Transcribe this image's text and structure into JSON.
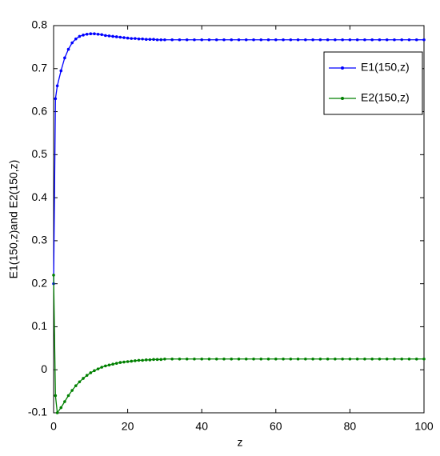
{
  "chart_data": {
    "type": "line",
    "xlabel": "z",
    "ylabel": "E1(150,z)and E2(150,z)",
    "x": [
      0,
      0.5,
      1,
      2,
      3,
      4,
      5,
      6,
      7,
      8,
      9,
      10,
      11,
      12,
      13,
      14,
      15,
      16,
      17,
      18,
      19,
      20,
      21,
      22,
      23,
      24,
      25,
      26,
      27,
      28,
      29,
      30,
      32,
      34,
      36,
      38,
      40,
      42,
      44,
      46,
      48,
      50,
      52,
      54,
      56,
      58,
      60,
      62,
      64,
      66,
      68,
      70,
      72,
      74,
      76,
      78,
      80,
      82,
      84,
      86,
      88,
      90,
      92,
      94,
      96,
      98,
      100
    ],
    "series": [
      {
        "name": "E1(150,z)",
        "color": "#0000ff",
        "values": [
          0.2,
          0.63,
          0.66,
          0.695,
          0.725,
          0.745,
          0.76,
          0.769,
          0.775,
          0.778,
          0.78,
          0.781,
          0.781,
          0.78,
          0.779,
          0.777,
          0.776,
          0.775,
          0.774,
          0.773,
          0.772,
          0.771,
          0.77,
          0.77,
          0.769,
          0.769,
          0.768,
          0.768,
          0.768,
          0.767,
          0.767,
          0.767,
          0.767,
          0.767,
          0.767,
          0.767,
          0.767,
          0.767,
          0.767,
          0.767,
          0.767,
          0.767,
          0.767,
          0.767,
          0.767,
          0.767,
          0.767,
          0.767,
          0.767,
          0.767,
          0.767,
          0.767,
          0.767,
          0.767,
          0.767,
          0.767,
          0.767,
          0.767,
          0.767,
          0.767,
          0.767,
          0.767,
          0.767,
          0.767,
          0.767,
          0.767,
          0.767
        ]
      },
      {
        "name": "E2(150,z)",
        "color": "#008000",
        "values": [
          0.22,
          -0.06,
          -0.1,
          -0.088,
          -0.074,
          -0.06,
          -0.048,
          -0.037,
          -0.028,
          -0.02,
          -0.013,
          -0.007,
          -0.002,
          0.002,
          0.006,
          0.009,
          0.011,
          0.013,
          0.015,
          0.017,
          0.018,
          0.019,
          0.02,
          0.021,
          0.022,
          0.022,
          0.023,
          0.023,
          0.024,
          0.024,
          0.024,
          0.025,
          0.025,
          0.025,
          0.025,
          0.025,
          0.025,
          0.025,
          0.025,
          0.025,
          0.025,
          0.025,
          0.025,
          0.025,
          0.025,
          0.025,
          0.025,
          0.025,
          0.025,
          0.025,
          0.025,
          0.025,
          0.025,
          0.025,
          0.025,
          0.025,
          0.025,
          0.025,
          0.025,
          0.025,
          0.025,
          0.025,
          0.025,
          0.025,
          0.025,
          0.025,
          0.025
        ]
      }
    ],
    "xlim": [
      0,
      100
    ],
    "xticks": [
      0,
      20,
      40,
      60,
      80,
      100
    ],
    "ylim": [
      -0.1,
      0.8
    ],
    "yticks": [
      -0.1,
      0,
      0.1,
      0.2,
      0.3,
      0.4,
      0.5,
      0.6,
      0.7,
      0.8
    ],
    "grid": false,
    "legend": "upper right"
  }
}
